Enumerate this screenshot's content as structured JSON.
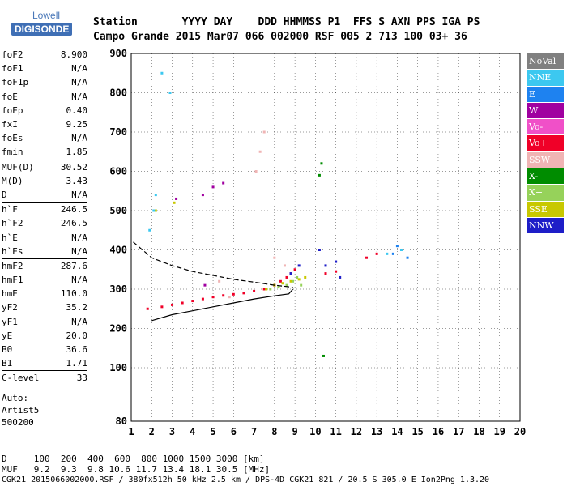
{
  "logo": {
    "top": "Lowell",
    "bottom": "DIGISONDE"
  },
  "header": {
    "row1": "Station       YYYY DAY    DDD HHMMSS P1  FFS S AXN PPS IGA PS",
    "row2": "Campo Grande 2015 Mar07 066 002000 RSF 005 2 713 100 03+ 36"
  },
  "params": [
    {
      "k": "foF2",
      "v": "8.900"
    },
    {
      "k": "foF1",
      "v": "N/A"
    },
    {
      "k": "foF1p",
      "v": "N/A"
    },
    {
      "k": "foE",
      "v": "N/A"
    },
    {
      "k": "foEp",
      "v": "0.40"
    },
    {
      "k": "fxI",
      "v": "9.25"
    },
    {
      "k": "foEs",
      "v": "N/A"
    },
    {
      "k": "fmin",
      "v": "1.85"
    },
    {
      "k": "MUF(D)",
      "v": "30.52"
    },
    {
      "k": "M(D)",
      "v": "3.43"
    },
    {
      "k": "D",
      "v": "N/A"
    },
    {
      "k": "h`F",
      "v": "246.5"
    },
    {
      "k": "h`F2",
      "v": "246.5"
    },
    {
      "k": "h`E",
      "v": "N/A"
    },
    {
      "k": "h`Es",
      "v": "N/A"
    },
    {
      "k": "hmF2",
      "v": "287.6"
    },
    {
      "k": "hmF1",
      "v": "N/A"
    },
    {
      "k": "hmE",
      "v": "110.0"
    },
    {
      "k": "yF2",
      "v": "35.2"
    },
    {
      "k": "yF1",
      "v": "N/A"
    },
    {
      "k": "yE",
      "v": "20.0"
    },
    {
      "k": "B0",
      "v": "36.6"
    },
    {
      "k": "B1",
      "v": "1.71"
    },
    {
      "k": "C-level",
      "v": "33"
    }
  ],
  "auto": {
    "l1": "Auto:",
    "l2": "Artist5",
    "l3": "500200"
  },
  "legend": [
    {
      "label": "NoVal",
      "color": "#808080"
    },
    {
      "label": "NNE",
      "color": "#3cc8f0"
    },
    {
      "label": "E",
      "color": "#1e82f0"
    },
    {
      "label": "W",
      "color": "#a000a0"
    },
    {
      "label": "Vo-",
      "color": "#f050c8"
    },
    {
      "label": "Vo+",
      "color": "#f00028"
    },
    {
      "label": "SSW",
      "color": "#f0b4b4"
    },
    {
      "label": "X-",
      "color": "#008c00"
    },
    {
      "label": "X+",
      "color": "#96d25a"
    },
    {
      "label": "SSE",
      "color": "#c8c800"
    },
    {
      "label": "NNW",
      "color": "#1e1ec8"
    }
  ],
  "footer": {
    "d": "D     100  200  400  600  800 1000 1500 3000 [km]",
    "muf": "MUF   9.2  9.3  9.8 10.6 11.7 13.4 18.1 30.5 [MHz]",
    "file": "CGK21_2015066002000.RSF / 380fx512h 50 kHz 2.5 km / DPS-4D CGK21 821 / 20.5 S 305.0 E Ion2Png 1.3.20"
  },
  "chart_data": {
    "type": "scatter",
    "xlabel": "",
    "ylabel": "",
    "xlim": [
      1,
      20
    ],
    "ylim": [
      80,
      900
    ],
    "x_ticks": [
      1,
      2,
      3,
      4,
      5,
      6,
      7,
      8,
      9,
      10,
      11,
      12,
      13,
      14,
      15,
      16,
      17,
      18,
      19,
      20
    ],
    "y_ticks": [
      80,
      100,
      200,
      300,
      400,
      500,
      600,
      700,
      800,
      900
    ],
    "grid": true,
    "series": [
      {
        "name": "Vo+",
        "points": [
          [
            1.8,
            250
          ],
          [
            2.5,
            255
          ],
          [
            3,
            260
          ],
          [
            3.5,
            265
          ],
          [
            4,
            270
          ],
          [
            4.5,
            275
          ],
          [
            5,
            280
          ],
          [
            5.5,
            284
          ],
          [
            6,
            287
          ],
          [
            6.5,
            290
          ],
          [
            7,
            295
          ],
          [
            7.5,
            300
          ],
          [
            8,
            310
          ],
          [
            8.3,
            320
          ],
          [
            8.6,
            330
          ],
          [
            8.8,
            340
          ],
          [
            9,
            350
          ],
          [
            10.5,
            340
          ],
          [
            11,
            345
          ],
          [
            12.5,
            380
          ],
          [
            13,
            390
          ]
        ]
      },
      {
        "name": "X+",
        "points": [
          [
            7.8,
            300
          ],
          [
            8.2,
            305
          ],
          [
            8.6,
            310
          ],
          [
            8.9,
            320
          ],
          [
            9.1,
            330
          ],
          [
            9.3,
            310
          ]
        ]
      },
      {
        "name": "SSE",
        "points": [
          [
            7.6,
            300
          ],
          [
            8,
            310
          ],
          [
            8.4,
            315
          ],
          [
            8.8,
            320
          ],
          [
            9.2,
            325
          ],
          [
            9.5,
            330
          ],
          [
            2.2,
            500
          ],
          [
            3.1,
            520
          ]
        ]
      },
      {
        "name": "NNW",
        "points": [
          [
            8.8,
            340
          ],
          [
            9.2,
            360
          ],
          [
            10.2,
            400
          ],
          [
            10.5,
            360
          ],
          [
            11,
            370
          ],
          [
            11.2,
            330
          ]
        ]
      },
      {
        "name": "W",
        "points": [
          [
            3.2,
            530
          ],
          [
            4.5,
            540
          ],
          [
            5,
            560
          ],
          [
            5.5,
            570
          ],
          [
            4.6,
            310
          ]
        ]
      },
      {
        "name": "NNE",
        "points": [
          [
            1.9,
            450
          ],
          [
            2.1,
            500
          ],
          [
            2.2,
            540
          ],
          [
            2.5,
            850
          ],
          [
            2.9,
            800
          ],
          [
            13.5,
            390
          ],
          [
            14.2,
            400
          ]
        ]
      },
      {
        "name": "E",
        "points": [
          [
            14,
            410
          ],
          [
            14.5,
            380
          ],
          [
            13.8,
            390
          ]
        ]
      },
      {
        "name": "SSW",
        "points": [
          [
            7.1,
            600
          ],
          [
            7.3,
            650
          ],
          [
            7.5,
            700
          ],
          [
            8,
            380
          ],
          [
            8.5,
            360
          ],
          [
            5.3,
            320
          ],
          [
            5.8,
            280
          ]
        ]
      },
      {
        "name": "X-",
        "points": [
          [
            10.2,
            590
          ],
          [
            10.3,
            620
          ],
          [
            10.4,
            130
          ]
        ]
      }
    ],
    "profile_line": [
      [
        2,
        220
      ],
      [
        3,
        235
      ],
      [
        4,
        245
      ],
      [
        5,
        255
      ],
      [
        6,
        265
      ],
      [
        7,
        275
      ],
      [
        8,
        283
      ],
      [
        8.7,
        288
      ],
      [
        8.9,
        300
      ]
    ],
    "dashed_line": [
      [
        1.1,
        420
      ],
      [
        2,
        380
      ],
      [
        3,
        360
      ],
      [
        4,
        345
      ],
      [
        5,
        335
      ],
      [
        6,
        325
      ],
      [
        7,
        318
      ],
      [
        8,
        310
      ],
      [
        8.9,
        305
      ]
    ]
  }
}
